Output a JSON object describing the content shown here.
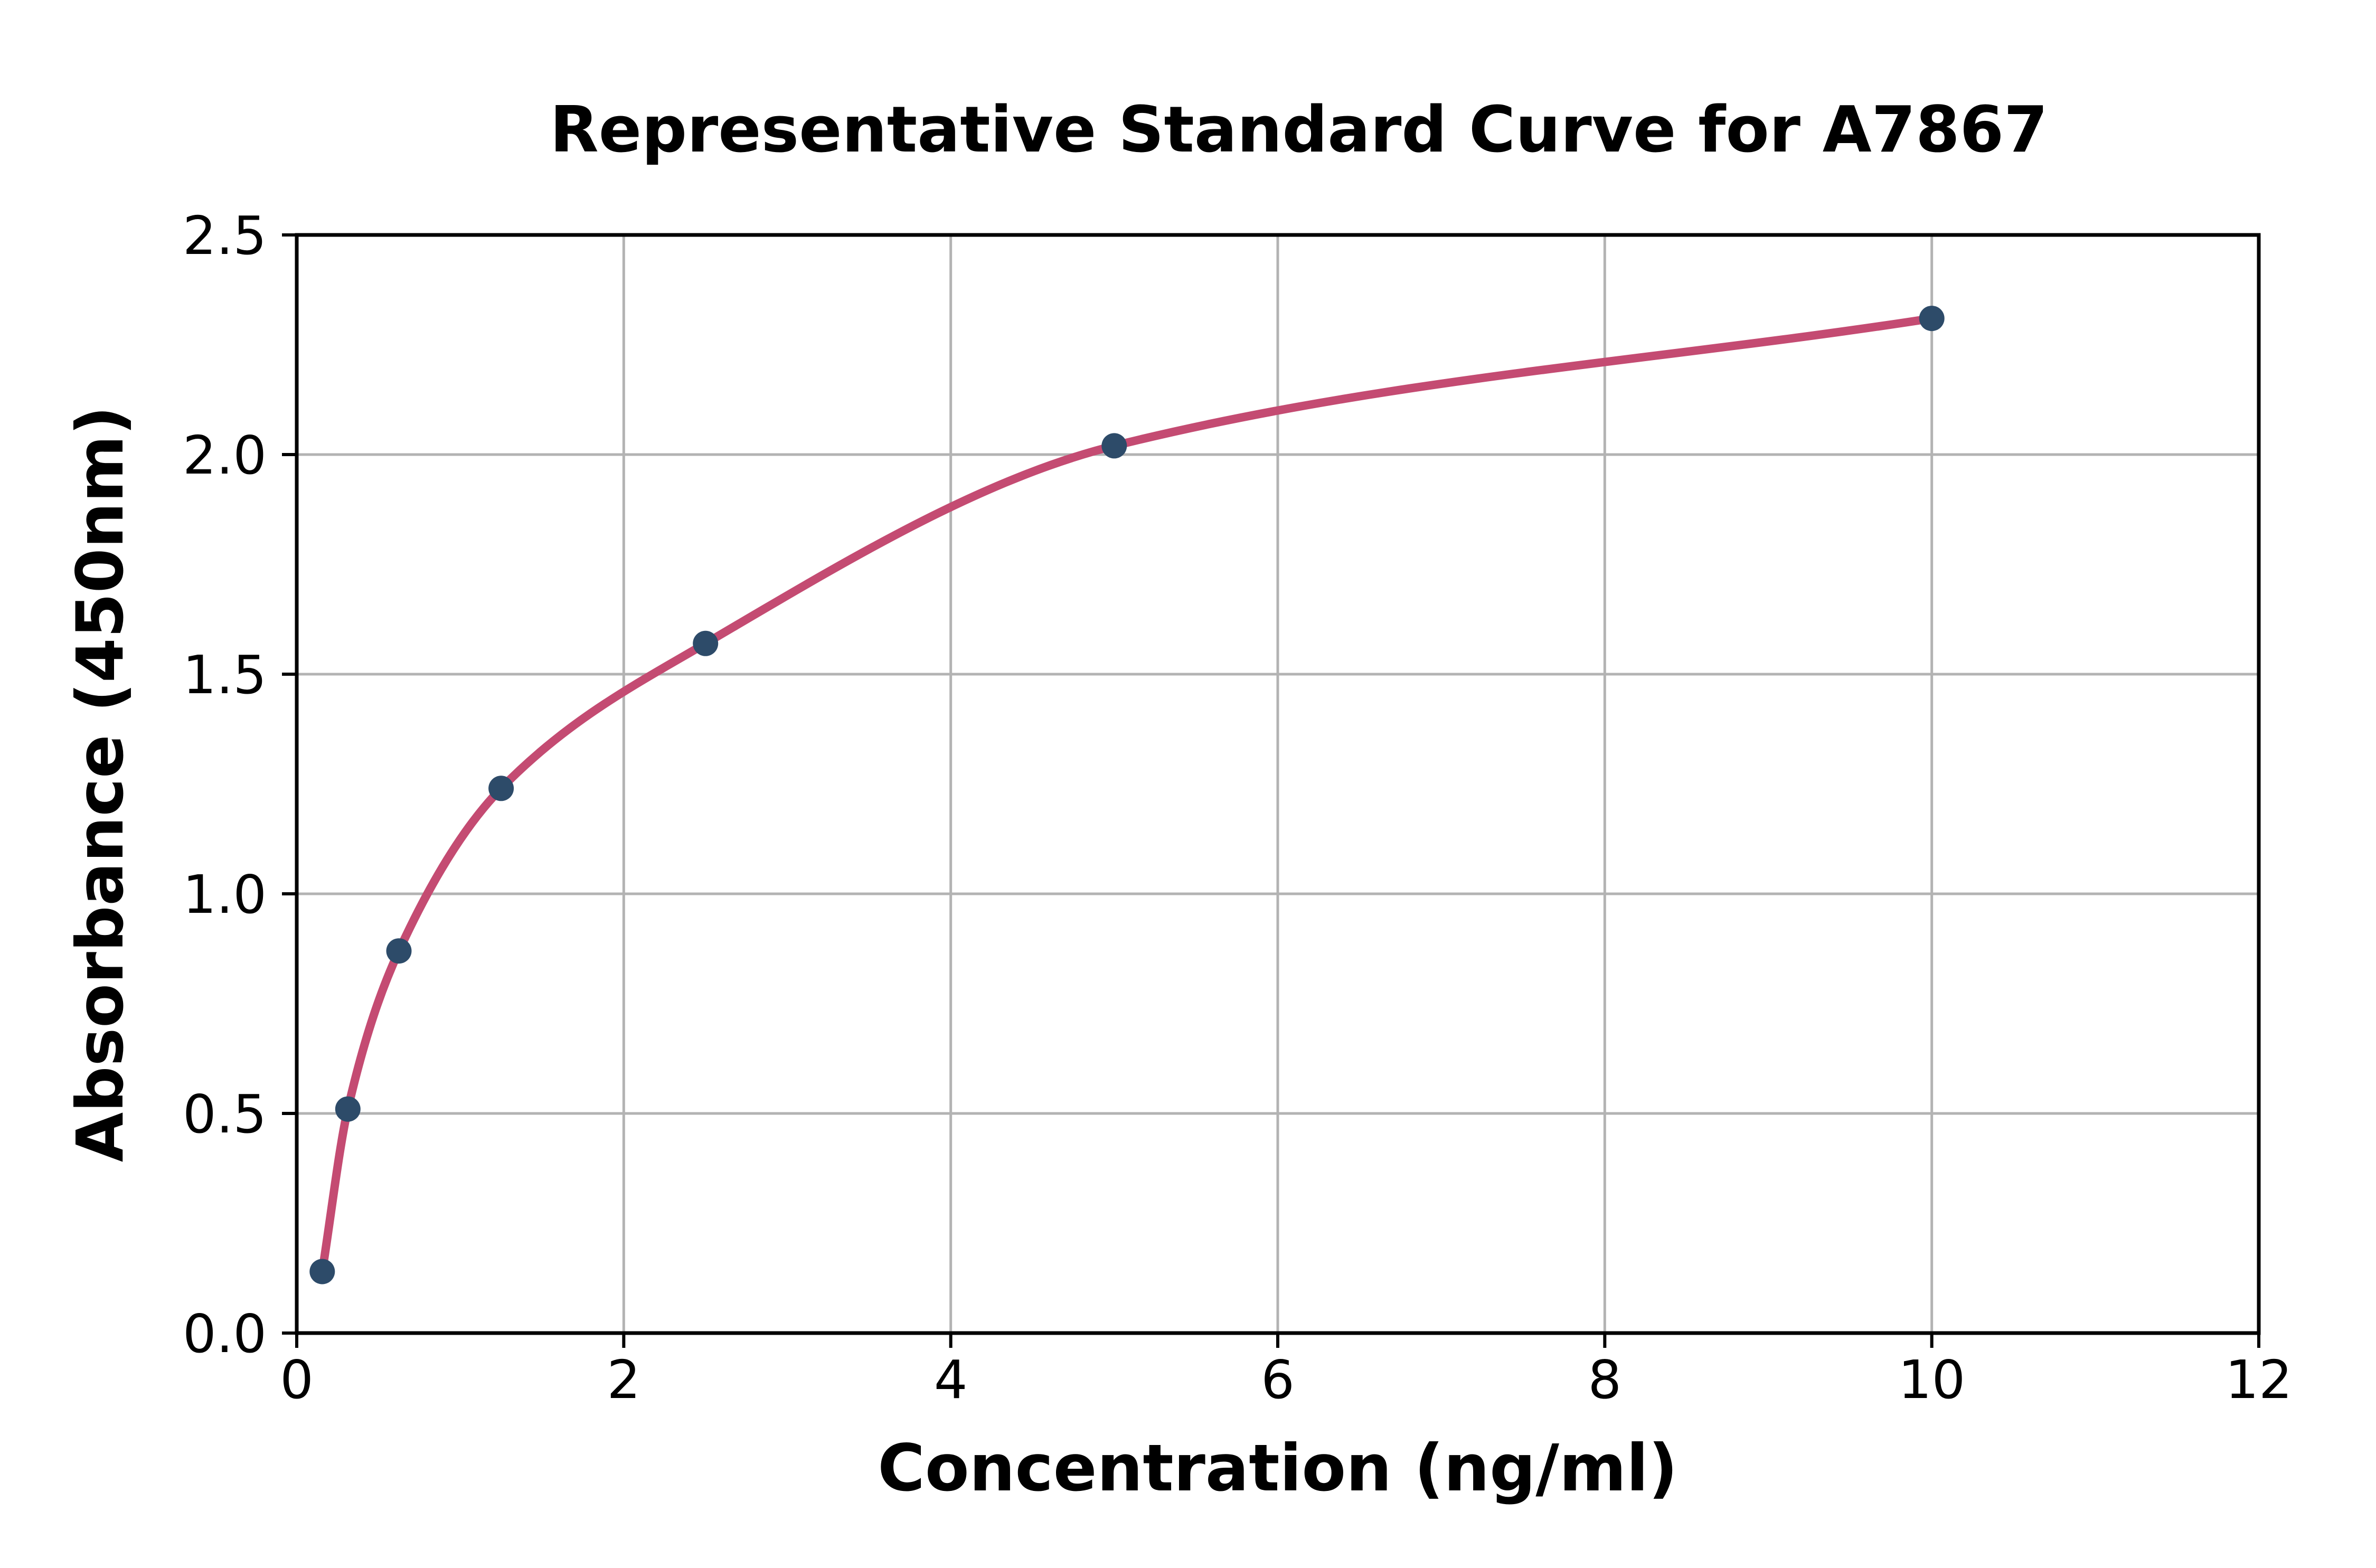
{
  "chart_data": {
    "type": "scatter",
    "title": "Representative Standard Curve for A7867",
    "xlabel": "Concentration (ng/ml)",
    "ylabel": "Absorbance (450nm)",
    "series": [
      {
        "name": "standards",
        "x": [
          0.156,
          0.3125,
          0.625,
          1.25,
          2.5,
          5,
          10
        ],
        "y": [
          0.14,
          0.51,
          0.87,
          1.24,
          1.57,
          2.02,
          2.31
        ]
      }
    ],
    "fit_curve": "smooth 4PL-style curve through the standard points",
    "xlim": [
      0,
      12
    ],
    "ylim": [
      0,
      2.5
    ],
    "x_ticks": [
      0,
      2,
      4,
      6,
      8,
      10,
      12
    ],
    "x_tick_labels": [
      "0",
      "2",
      "4",
      "6",
      "8",
      "10",
      "12"
    ],
    "y_ticks": [
      0,
      0.5,
      1.0,
      1.5,
      2.0,
      2.5
    ],
    "y_tick_labels": [
      "0.0",
      "0.5",
      "1.0",
      "1.5",
      "2.0",
      "2.5"
    ],
    "grid": true,
    "legend_position": "none",
    "colors": {
      "curve": "#C44B72",
      "points": "#2D4B69",
      "grid": "#B3B3B3",
      "axes": "#000000",
      "background": "#FFFFFF"
    }
  }
}
